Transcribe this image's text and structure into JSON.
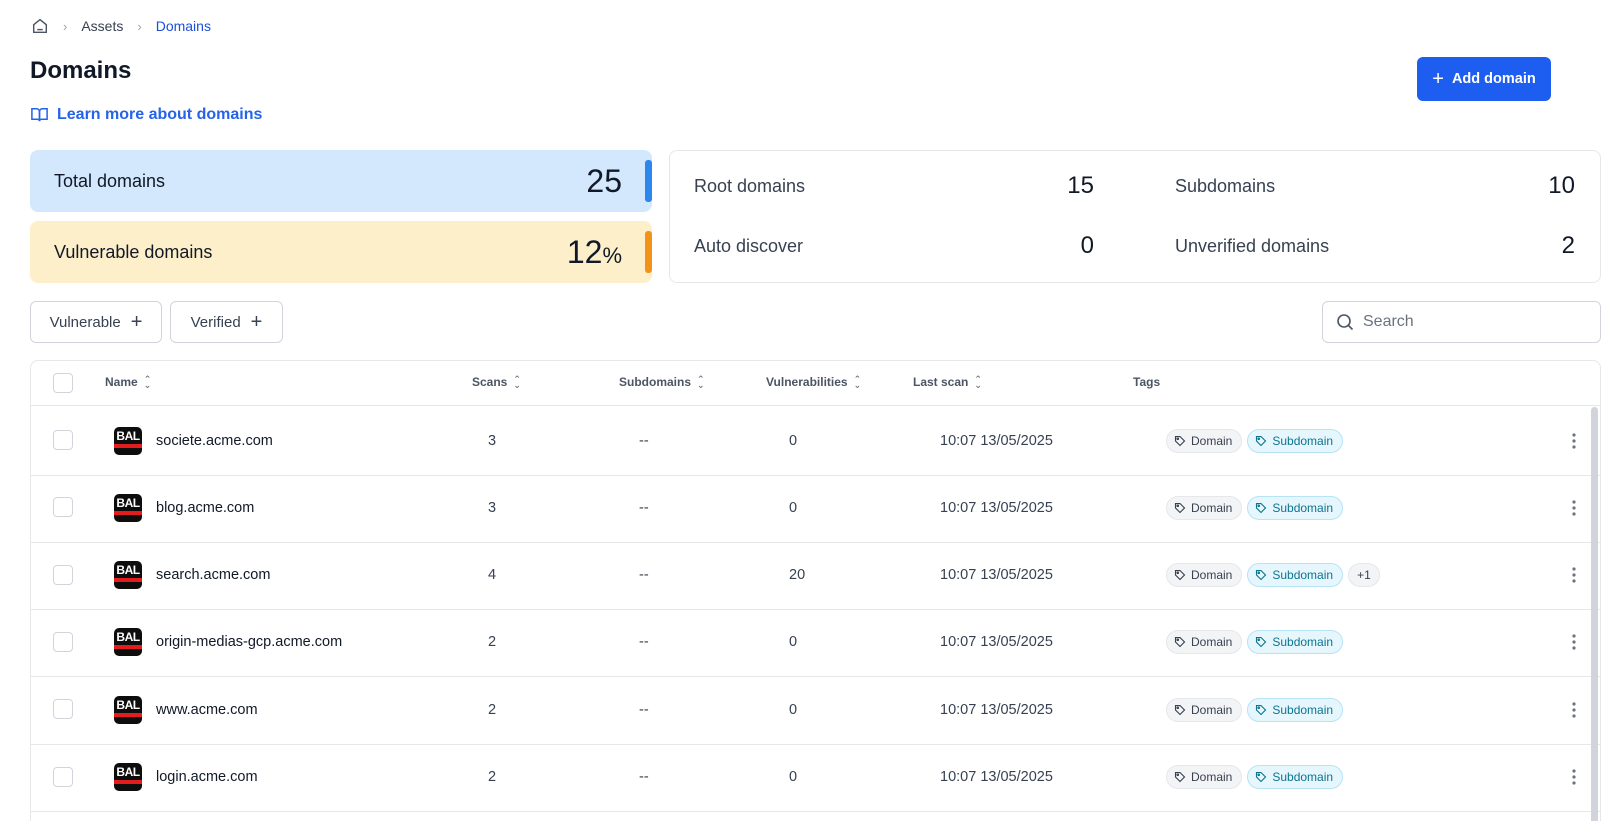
{
  "breadcrumb": {
    "items": [
      "Assets",
      "Domains"
    ]
  },
  "page": {
    "title": "Domains",
    "learn_more": "Learn more about domains"
  },
  "actions": {
    "add_domain": "Add domain"
  },
  "stats": {
    "total_label": "Total domains",
    "total_value": "25",
    "vulnerable_label": "Vulnerable domains",
    "vulnerable_value": "12",
    "vulnerable_unit": "%",
    "accent_total": "#2b86ee",
    "accent_vulnerable": "#f2921a"
  },
  "summary": {
    "root_label": "Root domains",
    "root_value": "15",
    "sub_label": "Subdomains",
    "sub_value": "10",
    "auto_label": "Auto discover",
    "auto_value": "0",
    "unverified_label": "Unverified domains",
    "unverified_value": "2"
  },
  "filters": {
    "vulnerable": "Vulnerable",
    "verified": "Verified"
  },
  "search": {
    "placeholder": "Search"
  },
  "table": {
    "columns": [
      "Name",
      "Scans",
      "Subdomains",
      "Vulnerabilities",
      "Last scan",
      "Tags"
    ],
    "rows": [
      {
        "name": "societe.acme.com",
        "scans": "3",
        "subdomains": "--",
        "vulnerabilities": "0",
        "last_scan": "10:07 13/05/2025",
        "tags": [
          "Domain",
          "Subdomain"
        ],
        "more": ""
      },
      {
        "name": "blog.acme.com",
        "scans": "3",
        "subdomains": "--",
        "vulnerabilities": "0",
        "last_scan": "10:07 13/05/2025",
        "tags": [
          "Domain",
          "Subdomain"
        ],
        "more": ""
      },
      {
        "name": "search.acme.com",
        "scans": "4",
        "subdomains": "--",
        "vulnerabilities": "20",
        "last_scan": "10:07 13/05/2025",
        "tags": [
          "Domain",
          "Subdomain"
        ],
        "more": "+1"
      },
      {
        "name": "origin-medias-gcp.acme.com",
        "scans": "2",
        "subdomains": "--",
        "vulnerabilities": "0",
        "last_scan": "10:07 13/05/2025",
        "tags": [
          "Domain",
          "Subdomain"
        ],
        "more": ""
      },
      {
        "name": "www.acme.com",
        "scans": "2",
        "subdomains": "--",
        "vulnerabilities": "0",
        "last_scan": "10:07 13/05/2025",
        "tags": [
          "Domain",
          "Subdomain"
        ],
        "more": ""
      },
      {
        "name": "login.acme.com",
        "scans": "2",
        "subdomains": "--",
        "vulnerabilities": "0",
        "last_scan": "10:07 13/05/2025",
        "tags": [
          "Domain",
          "Subdomain"
        ],
        "more": ""
      }
    ],
    "favicon_text": "BAL"
  },
  "colors": {
    "primary": "#1d5ef0",
    "link": "#2563eb"
  }
}
